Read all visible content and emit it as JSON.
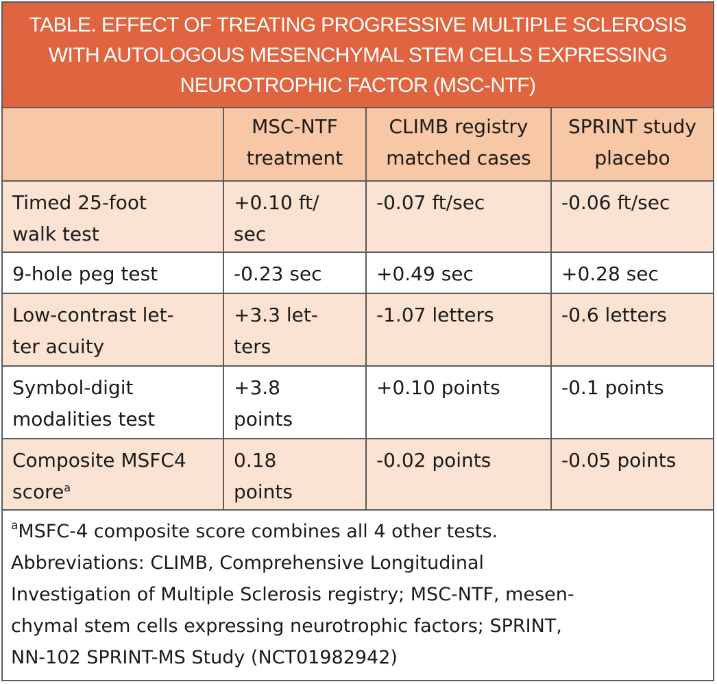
{
  "title_lines": [
    "TABLE. EFFECT OF TREATING PROGRESSIVE MULTIPLE SCLEROSIS",
    "WITH AUTOLOGOUS MESENCHYMAL STEM CELLS EXPRESSING",
    "NEUROTROPHIC FACTOR (MSC-NTF)"
  ],
  "columns": [
    [
      "",
      ""
    ],
    [
      "MSC-NTF",
      "treatment"
    ],
    [
      "CLIMB registry",
      "matched cases"
    ],
    [
      "SPRINT study",
      "placebo"
    ]
  ],
  "rows": [
    {
      "measure": [
        "Timed 25-foot",
        "walk test"
      ],
      "msc_ntf": [
        "+0.10 ft/",
        "sec"
      ],
      "climb": [
        "-0.07 ft/sec"
      ],
      "sprint": [
        "-0.06 ft/sec"
      ]
    },
    {
      "measure": [
        "9-hole peg test"
      ],
      "msc_ntf": [
        "-0.23 sec"
      ],
      "climb": [
        "+0.49 sec"
      ],
      "sprint": [
        "+0.28 sec"
      ]
    },
    {
      "measure": [
        "Low-contrast let-",
        "ter acuity"
      ],
      "msc_ntf": [
        "+3.3 let-",
        "ters"
      ],
      "climb": [
        "-1.07 letters"
      ],
      "sprint": [
        "-0.6 letters"
      ]
    },
    {
      "measure": [
        "Symbol-digit",
        "modalities test"
      ],
      "msc_ntf": [
        "+3.8",
        "points"
      ],
      "climb": [
        "+0.10 points"
      ],
      "sprint": [
        "-0.1 points"
      ]
    },
    {
      "measure": [
        "Composite MSFC4",
        "score"
      ],
      "measure_sup": "a",
      "msc_ntf": [
        "0.18",
        "points"
      ],
      "climb": [
        "-0.02 points"
      ],
      "sprint": [
        "-0.05 points"
      ]
    }
  ],
  "footnote": {
    "marker": "a",
    "lines": [
      "MSFC-4 composite score combines all 4 other tests.",
      "Abbreviations: CLIMB, Comprehensive Longitudinal",
      "Investigation of Multiple Sclerosis registry; MSC-NTF, mesen-",
      "chymal stem cells expressing neurotrophic factors; SPRINT,",
      "NN-102 SPRINT-MS Study (NCT01982942)"
    ]
  },
  "colors": {
    "title_bg": "#e0643f",
    "header_bg": "#f7c7a6",
    "row_shade": "#fbe3d4",
    "border": "#5a5a5a"
  }
}
